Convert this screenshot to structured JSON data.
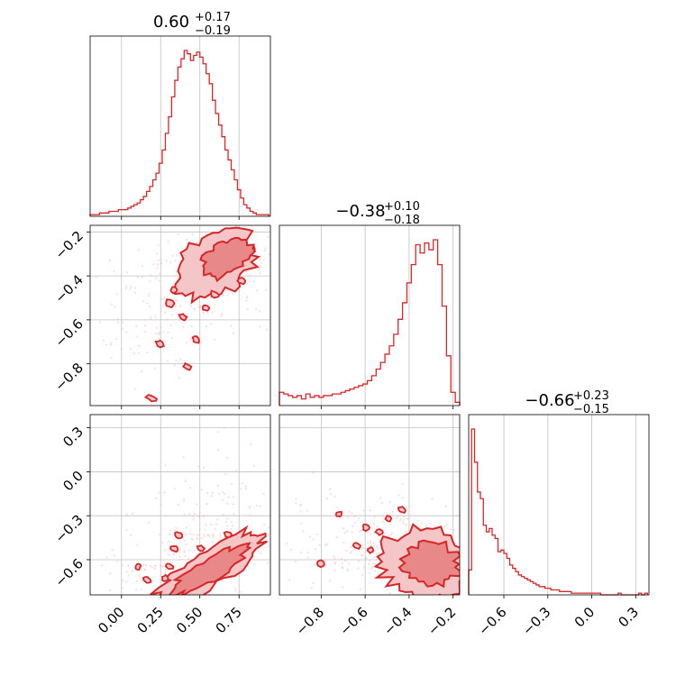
{
  "chart_data": [
    {
      "type": "histogram",
      "panel": "hist-param-1",
      "title": {
        "median": "0.60",
        "plus": "+0.17",
        "minus": "−0.19"
      },
      "x_range": [
        -0.2,
        0.95
      ],
      "bins": [
        -0.2,
        -0.18,
        -0.16,
        -0.14,
        -0.12,
        -0.1,
        -0.08,
        -0.06,
        -0.04,
        -0.02,
        0.0,
        0.02,
        0.04,
        0.06,
        0.08,
        0.1,
        0.12,
        0.14,
        0.16,
        0.18,
        0.2,
        0.22,
        0.24,
        0.26,
        0.28,
        0.3,
        0.32,
        0.34,
        0.36,
        0.38,
        0.4,
        0.42,
        0.44,
        0.46,
        0.48,
        0.5,
        0.52,
        0.54,
        0.56,
        0.58,
        0.6,
        0.62,
        0.64,
        0.66,
        0.68,
        0.7,
        0.72,
        0.74,
        0.76,
        0.78,
        0.8,
        0.82,
        0.84,
        0.86,
        0.88,
        0.9,
        0.92,
        0.94
      ],
      "counts": [
        1,
        1,
        1,
        2,
        2,
        2,
        3,
        3,
        3,
        4,
        4,
        4,
        5,
        6,
        7,
        8,
        10,
        12,
        15,
        18,
        22,
        26,
        32,
        40,
        50,
        60,
        72,
        82,
        90,
        95,
        100,
        98,
        94,
        97,
        99,
        96,
        92,
        86,
        80,
        70,
        62,
        55,
        48,
        40,
        34,
        28,
        22,
        16,
        11,
        7,
        5,
        3,
        2,
        1,
        1,
        1,
        1
      ],
      "ticks": [
        "0.00",
        "0.25",
        "0.50",
        "0.75"
      ],
      "tick_values": [
        0.0,
        0.25,
        0.5,
        0.75
      ]
    },
    {
      "type": "histogram",
      "panel": "hist-param-2",
      "title": {
        "median": "−0.38",
        "plus": "+0.10",
        "minus": "−0.18"
      },
      "x_range": [
        -0.99,
        -0.17
      ],
      "bins": [
        -0.99,
        -0.97,
        -0.95,
        -0.93,
        -0.91,
        -0.89,
        -0.87,
        -0.85,
        -0.83,
        -0.81,
        -0.79,
        -0.77,
        -0.75,
        -0.73,
        -0.71,
        -0.69,
        -0.67,
        -0.65,
        -0.63,
        -0.61,
        -0.59,
        -0.57,
        -0.55,
        -0.53,
        -0.51,
        -0.49,
        -0.47,
        -0.45,
        -0.43,
        -0.41,
        -0.39,
        -0.37,
        -0.35,
        -0.33,
        -0.31,
        -0.29,
        -0.27,
        -0.25,
        -0.23,
        -0.21,
        -0.19,
        -0.17
      ],
      "counts": [
        8,
        7,
        6,
        5,
        6,
        4,
        7,
        5,
        6,
        5,
        6,
        6,
        7,
        7,
        8,
        9,
        10,
        11,
        12,
        13,
        15,
        18,
        22,
        26,
        31,
        36,
        43,
        52,
        62,
        74,
        85,
        97,
        92,
        98,
        94,
        100,
        85,
        60,
        30,
        8,
        2
      ],
      "ticks": [
        "−0.8",
        "−0.6",
        "−0.4",
        "−0.2"
      ],
      "tick_values": [
        -0.8,
        -0.6,
        -0.4,
        -0.2
      ]
    },
    {
      "type": "histogram",
      "panel": "hist-param-3",
      "title": {
        "median": "−0.66",
        "plus": "+0.23",
        "minus": "−0.15"
      },
      "x_range": [
        -0.84,
        0.39
      ],
      "bins": [
        -0.84,
        -0.82,
        -0.8,
        -0.78,
        -0.76,
        -0.74,
        -0.72,
        -0.7,
        -0.68,
        -0.66,
        -0.64,
        -0.62,
        -0.6,
        -0.58,
        -0.56,
        -0.54,
        -0.52,
        -0.5,
        -0.48,
        -0.46,
        -0.44,
        -0.42,
        -0.4,
        -0.38,
        -0.36,
        -0.34,
        -0.32,
        -0.3,
        -0.28,
        -0.26,
        -0.24,
        -0.22,
        -0.2,
        -0.18,
        -0.16,
        -0.14,
        -0.12,
        -0.1,
        -0.08,
        -0.06,
        -0.04,
        -0.02,
        0.0,
        0.02,
        0.04,
        0.06,
        0.08,
        0.1,
        0.12,
        0.14,
        0.16,
        0.18,
        0.2,
        0.22,
        0.24,
        0.26,
        0.28,
        0.3,
        0.32,
        0.34,
        0.36,
        0.38
      ],
      "counts": [
        15,
        100,
        80,
        62,
        58,
        42,
        38,
        40,
        36,
        34,
        26,
        27,
        25,
        22,
        18,
        16,
        14,
        12,
        11,
        10,
        9,
        8,
        7,
        6,
        5,
        5,
        4,
        4,
        3,
        3,
        3,
        2,
        2,
        2,
        2,
        1,
        1,
        1,
        1,
        1,
        1,
        1,
        1,
        1,
        1,
        0,
        0,
        0,
        0,
        0,
        0,
        1,
        0,
        0,
        0,
        0,
        0,
        0,
        1,
        0,
        1
      ],
      "ticks": [
        "−0.6",
        "−0.3",
        "0.0",
        "0.3"
      ],
      "tick_values": [
        -0.6,
        -0.3,
        0.0,
        0.3
      ]
    },
    {
      "type": "contour-2d",
      "panel": "param-1-vs-param-2",
      "x_range": [
        -0.2,
        0.95
      ],
      "y_range": [
        -0.99,
        -0.17
      ],
      "y_ticks": [
        "−0.2",
        "−0.4",
        "−0.6",
        "−0.8"
      ],
      "y_tick_values": [
        -0.2,
        -0.4,
        -0.6,
        -0.8
      ],
      "density_center": [
        0.65,
        -0.3
      ],
      "levels": [
        "outer",
        "inner"
      ]
    },
    {
      "type": "contour-2d",
      "panel": "param-1-vs-param-3",
      "x_range": [
        -0.2,
        0.95
      ],
      "y_range": [
        -0.84,
        0.39
      ],
      "y_ticks": [
        "0.3",
        "0.0",
        "−0.3",
        "−0.6"
      ],
      "y_tick_values": [
        0.3,
        0.0,
        -0.3,
        -0.6
      ],
      "density_center": [
        0.45,
        -0.8
      ],
      "levels": [
        "outer",
        "inner"
      ]
    },
    {
      "type": "contour-2d",
      "panel": "param-2-vs-param-3",
      "x_range": [
        -0.99,
        -0.17
      ],
      "y_range": [
        -0.84,
        0.39
      ],
      "density_center": [
        -0.35,
        -0.75
      ],
      "levels": [
        "outer",
        "inner"
      ]
    }
  ],
  "colors": {
    "primary": "#d62728",
    "fill_outer": "#f4c6c7",
    "fill_inner": "#e88889",
    "grid": "#c0c0c0"
  }
}
